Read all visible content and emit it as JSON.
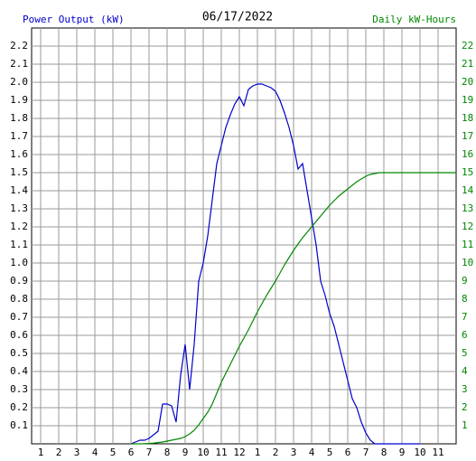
{
  "chart_data": {
    "type": "line",
    "title": "06/17/2022",
    "y_label": "Power Output (kW)",
    "y2_label": "Daily kW-Hours",
    "xlim": [
      0.5,
      24
    ],
    "xticks": [
      1,
      2,
      3,
      4,
      5,
      6,
      7,
      8,
      9,
      10,
      11,
      12,
      {
        "value": 13,
        "label": "1"
      },
      {
        "value": 14,
        "label": "2"
      },
      {
        "value": 15,
        "label": "3"
      },
      {
        "value": 16,
        "label": "4"
      },
      {
        "value": 17,
        "label": "5"
      },
      {
        "value": 18,
        "label": "6"
      },
      {
        "value": 19,
        "label": "7"
      },
      {
        "value": 20,
        "label": "8"
      },
      {
        "value": 21,
        "label": "9"
      },
      {
        "value": 22,
        "label": "10"
      },
      {
        "value": 23,
        "label": "11"
      }
    ],
    "ylim": [
      0,
      2.3
    ],
    "yticks": [
      0.1,
      0.2,
      0.3,
      0.4,
      0.5,
      0.6,
      0.7,
      0.8,
      0.9,
      {
        "value": 1,
        "label": "1.0"
      },
      1.1,
      1.2,
      1.3,
      1.4,
      1.5,
      1.6,
      1.7,
      1.8,
      1.9,
      {
        "value": 2,
        "label": "2.0"
      },
      2.1,
      2.2
    ],
    "y2lim": [
      0,
      23
    ],
    "y2ticks": [
      1,
      2,
      3,
      4,
      5,
      6,
      7,
      8,
      9,
      10,
      11,
      12,
      13,
      14,
      15,
      16,
      17,
      18,
      19,
      20,
      21,
      22
    ],
    "grid": true,
    "x": [
      6,
      6.25,
      6.5,
      6.75,
      7,
      7.25,
      7.5,
      7.75,
      8,
      8.25,
      8.5,
      8.75,
      9,
      9.25,
      9.5,
      9.75,
      10,
      10.25,
      10.5,
      10.75,
      11,
      11.25,
      11.5,
      11.75,
      12,
      12.25,
      12.5,
      12.75,
      13,
      13.25,
      13.5,
      13.75,
      14,
      14.25,
      14.5,
      14.75,
      15,
      15.25,
      15.5,
      15.75,
      16,
      16.25,
      16.5,
      16.75,
      17,
      17.25,
      17.5,
      17.75,
      18,
      18.25,
      18.5,
      18.75,
      19,
      19.25,
      19.5,
      19.75,
      20,
      21,
      22,
      23,
      24
    ],
    "series": [
      {
        "name": "Power Output (kW)",
        "color": "#0000cc",
        "values": [
          0,
          0.01,
          0.02,
          0.02,
          0.03,
          0.05,
          0.07,
          0.22,
          0.22,
          0.21,
          0.12,
          0.38,
          0.55,
          0.3,
          0.55,
          0.9,
          1.0,
          1.15,
          1.35,
          1.55,
          1.65,
          1.75,
          1.82,
          1.88,
          1.92,
          1.87,
          1.96,
          1.98,
          1.99,
          1.99,
          1.98,
          1.97,
          1.95,
          1.9,
          1.83,
          1.75,
          1.65,
          1.52,
          1.55,
          1.4,
          1.25,
          1.1,
          0.9,
          0.82,
          0.72,
          0.65,
          0.55,
          0.45,
          0.35,
          0.25,
          0.2,
          0.12,
          0.06,
          0.02,
          0,
          0,
          0,
          0,
          0,
          null,
          null
        ]
      },
      {
        "name": "Daily kW-Hours",
        "color": "#008800",
        "axis": "y2",
        "values": [
          0,
          0,
          0,
          0.01,
          0.02,
          0.04,
          0.07,
          0.1,
          0.15,
          0.2,
          0.25,
          0.3,
          0.4,
          0.55,
          0.75,
          1.05,
          1.4,
          1.75,
          2.2,
          2.8,
          3.4,
          3.9,
          4.4,
          4.9,
          5.4,
          5.85,
          6.3,
          6.8,
          7.3,
          7.75,
          8.2,
          8.6,
          9.0,
          9.45,
          9.9,
          10.3,
          10.7,
          11.05,
          11.4,
          11.7,
          12.0,
          12.3,
          12.6,
          12.9,
          13.2,
          13.45,
          13.7,
          13.9,
          14.1,
          14.3,
          14.5,
          14.65,
          14.8,
          14.9,
          14.95,
          15,
          15,
          15,
          15,
          15,
          15
        ]
      }
    ]
  }
}
